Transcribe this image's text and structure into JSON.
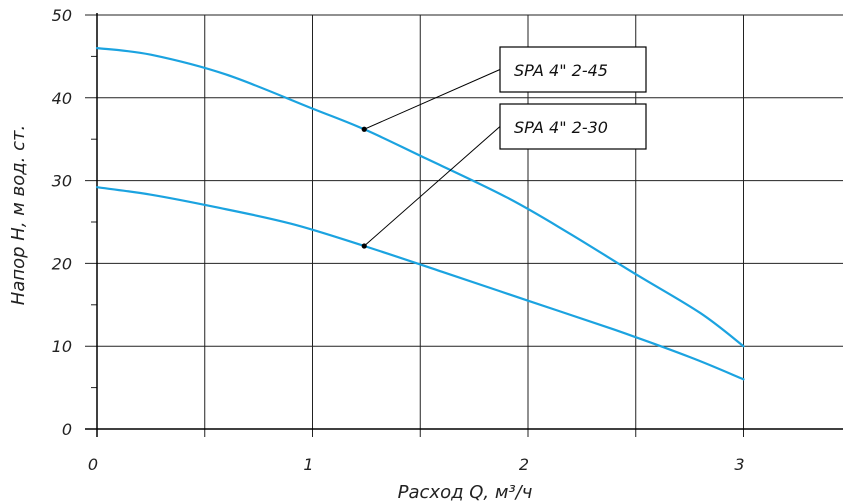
{
  "chart_data": {
    "type": "line",
    "title": "",
    "xlabel": "Расход Q, м³/ч",
    "ylabel": "Напор H, м вод. ст.",
    "xlim": [
      0,
      3.5
    ],
    "ylim": [
      0,
      50
    ],
    "xticks": [
      0,
      1,
      2,
      3
    ],
    "yticks": [
      0,
      10,
      20,
      30,
      40,
      50
    ],
    "x_minor_step": 0.5,
    "y_minor_step": 5,
    "grid": true,
    "line_color": "#1ba3e0",
    "series": [
      {
        "name": "SPA 4\" 2-45",
        "points": [
          [
            0,
            46
          ],
          [
            0.25,
            45.2
          ],
          [
            0.6,
            42.8
          ],
          [
            1.0,
            38.7
          ],
          [
            1.24,
            36.2
          ],
          [
            1.5,
            33.0
          ],
          [
            1.9,
            28.0
          ],
          [
            2.2,
            23.5
          ],
          [
            2.5,
            18.7
          ],
          [
            2.8,
            14.0
          ],
          [
            3.0,
            10.0
          ]
        ],
        "callout_at": 1.24
      },
      {
        "name": "SPA 4\" 2-30",
        "points": [
          [
            0,
            29.2
          ],
          [
            0.25,
            28.3
          ],
          [
            0.55,
            26.8
          ],
          [
            0.9,
            24.8
          ],
          [
            1.24,
            22.1
          ],
          [
            1.6,
            19.0
          ],
          [
            2.0,
            15.5
          ],
          [
            2.4,
            12.0
          ],
          [
            2.75,
            8.7
          ],
          [
            3.0,
            6.0
          ]
        ],
        "callout_at": 1.24
      }
    ]
  }
}
